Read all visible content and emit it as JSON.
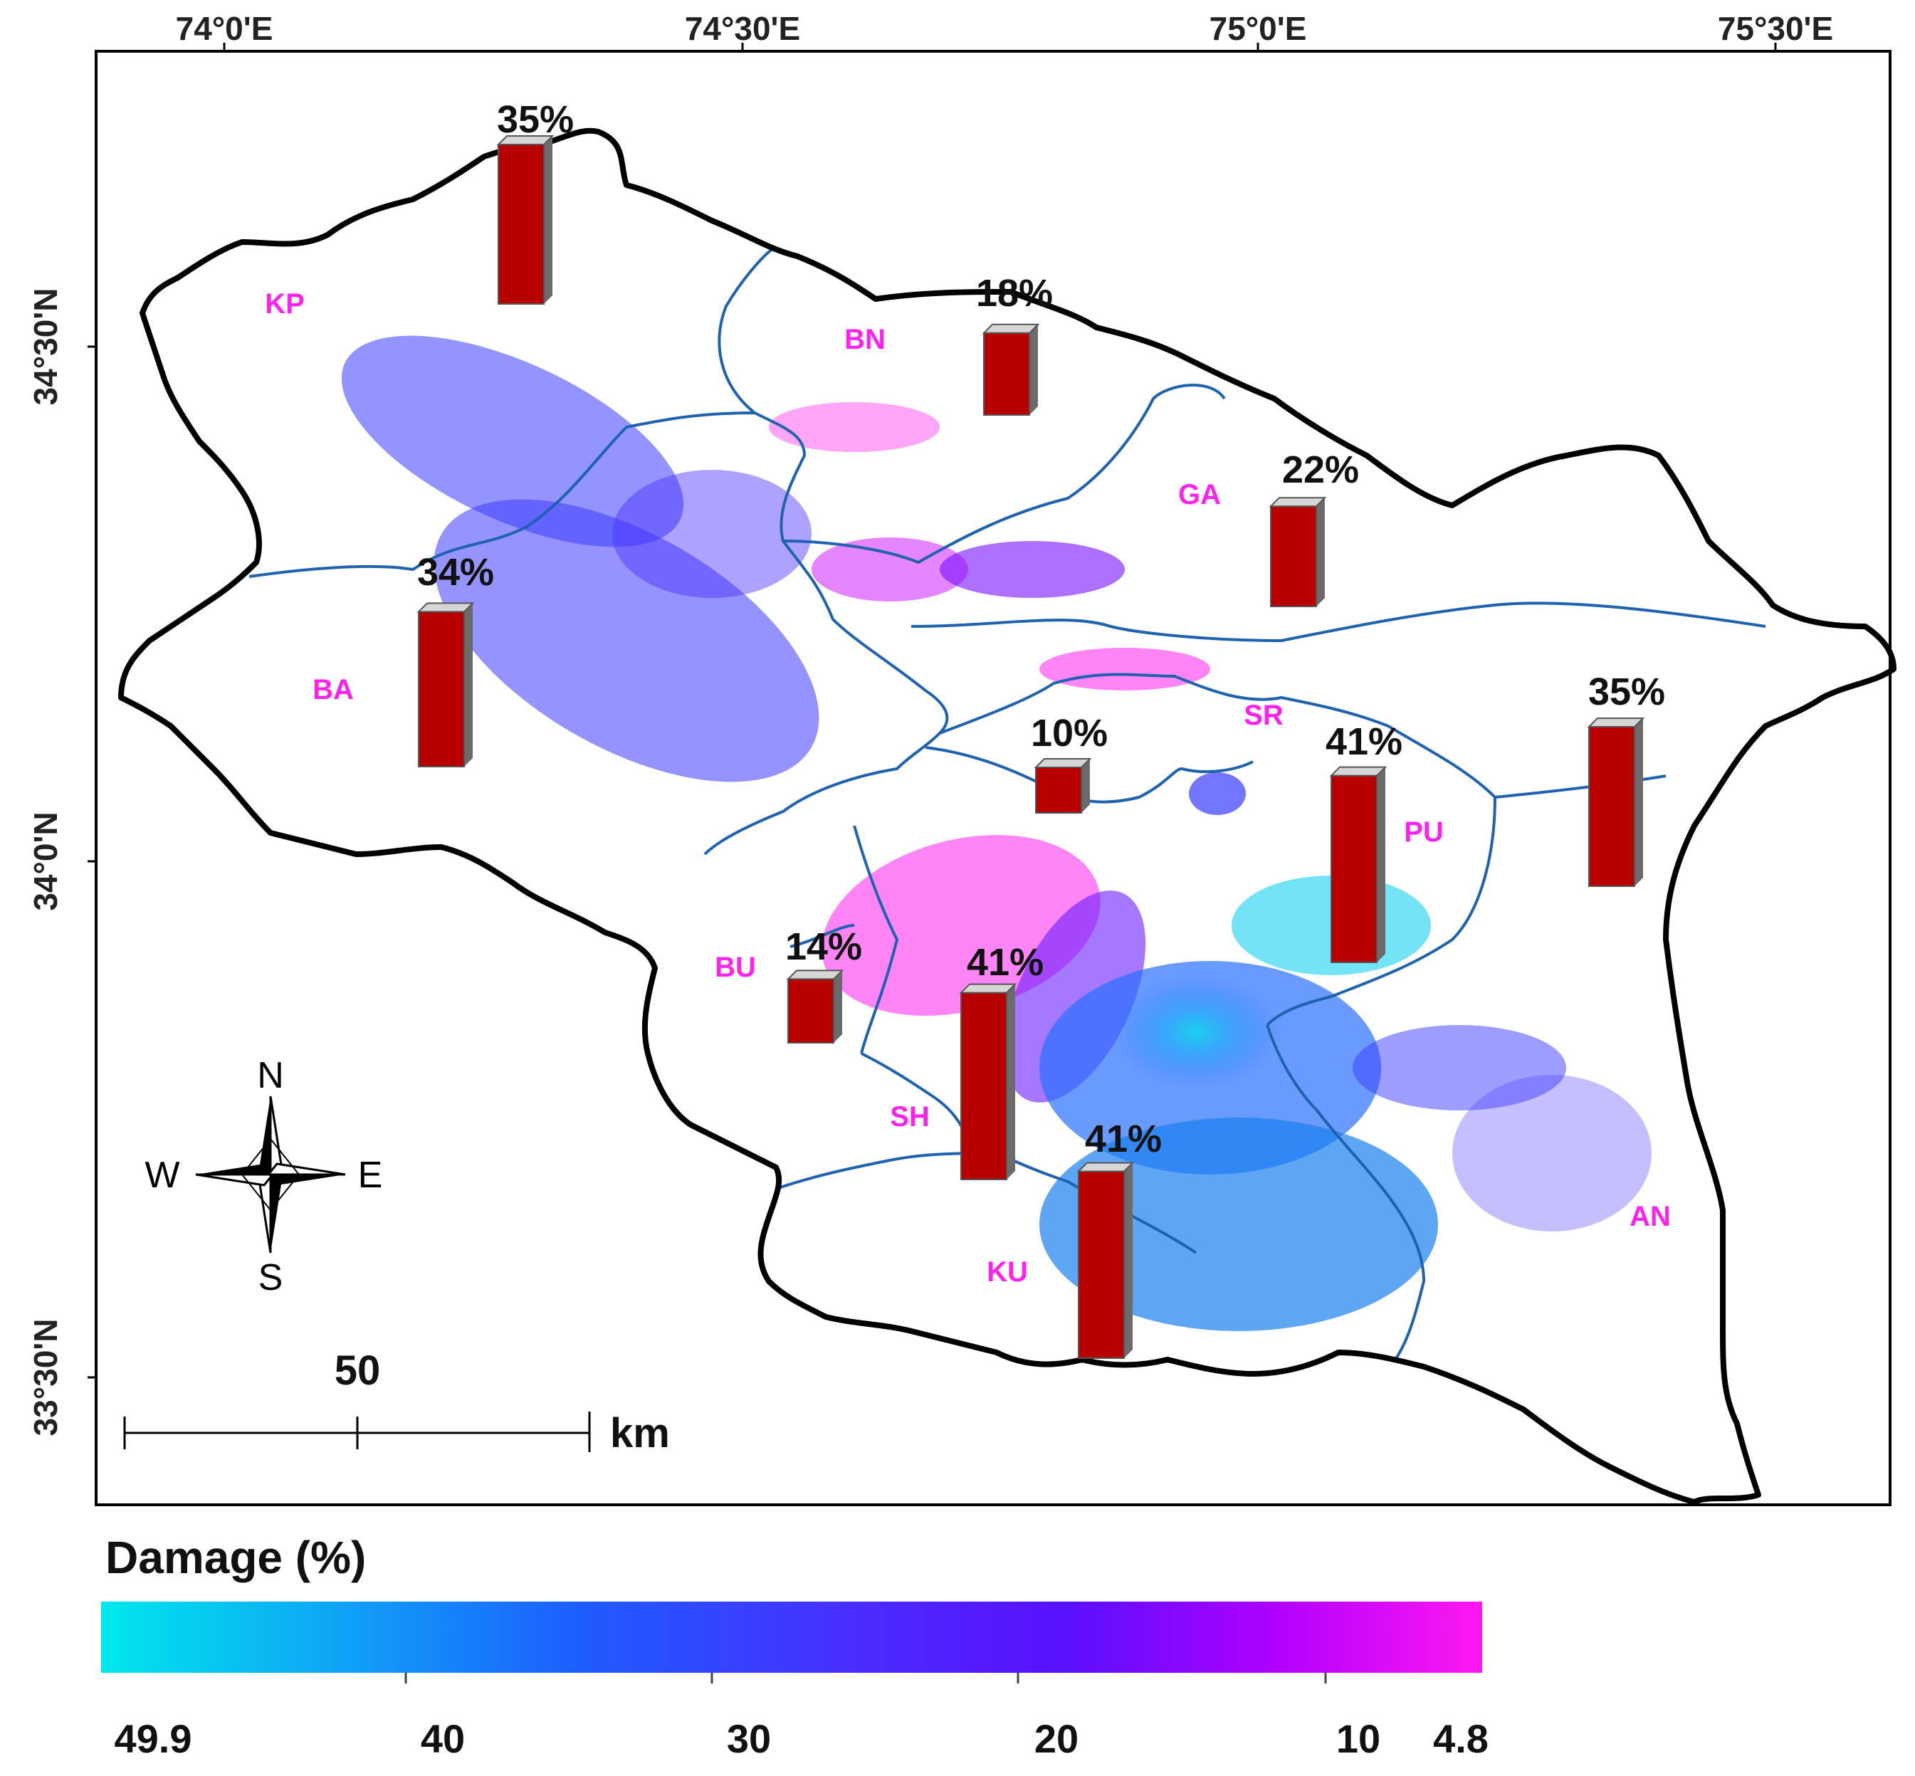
{
  "map": {
    "x_ticks": [
      "74°0'E",
      "74°30'E",
      "75°0'E",
      "75°30'E"
    ],
    "y_ticks": [
      "34°30'N",
      "34°0'N",
      "33°30'N"
    ],
    "colors": {
      "boundary": "#000000",
      "district_line": "#1f62b0",
      "bar_fill": "#b80000",
      "bar_side": "#6b6b6b",
      "district_label": "#ff22ee"
    },
    "districts": [
      {
        "code": "KP",
        "damage_label": "35%",
        "damage": 35
      },
      {
        "code": "BN",
        "damage_label": "18%",
        "damage": 18
      },
      {
        "code": "GA",
        "damage_label": "22%",
        "damage": 22
      },
      {
        "code": "BA",
        "damage_label": "34%",
        "damage": 34
      },
      {
        "code": "SR",
        "damage_label": "10%",
        "damage": 10
      },
      {
        "code": "PU",
        "damage_label": "41%",
        "damage": 41
      },
      {
        "code": "AN",
        "damage_label": "35%",
        "damage": 35
      },
      {
        "code": "BU",
        "damage_label": "14%",
        "damage": 14
      },
      {
        "code": "SH",
        "damage_label": "41%",
        "damage": 41
      },
      {
        "code": "KU",
        "damage_label": "41%",
        "damage": 41
      }
    ]
  },
  "compass": {
    "n": "N",
    "s": "S",
    "e": "E",
    "w": "W",
    "icon": "compass-rose-icon"
  },
  "scale_bar": {
    "value": "50",
    "unit": "km"
  },
  "legend": {
    "title": "Damage (%)",
    "ticks": [
      "49.9",
      "40",
      "30",
      "20",
      "10",
      "4.8"
    ],
    "gradient": [
      "#00e8ec",
      "#1e5cff",
      "#5a22ff",
      "#a000ff",
      "#ff18f0"
    ]
  }
}
